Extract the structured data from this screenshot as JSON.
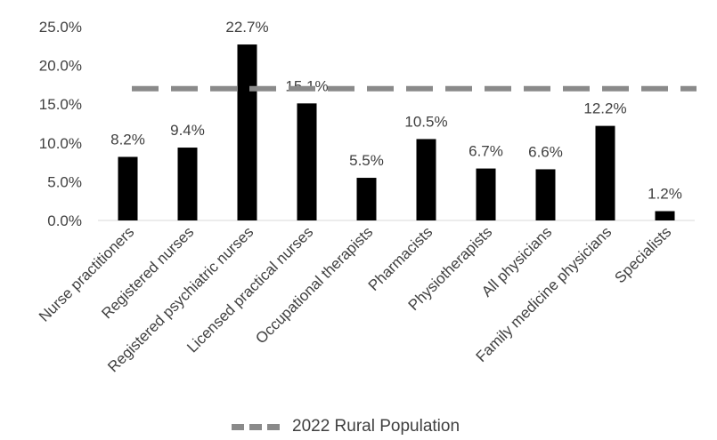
{
  "chart_data": {
    "type": "bar",
    "categories": [
      "Nurse practitioners",
      "Registered nurses",
      "Registered psychiatric nurses",
      "Licensed practical nurses",
      "Occupational therapists",
      "Pharmacists",
      "Physiotherapists",
      "All physicians",
      "Family medicine physicians",
      "Specialists"
    ],
    "values": [
      8.2,
      9.4,
      22.7,
      15.1,
      5.5,
      10.5,
      6.7,
      6.6,
      12.2,
      1.2
    ],
    "value_labels": [
      "8.2%",
      "9.4%",
      "22.7%",
      "15.1%",
      "5.5%",
      "10.5%",
      "6.7%",
      "6.6%",
      "12.2%",
      "1.2%"
    ],
    "y_ticks": [
      "0.0%",
      "5.0%",
      "10.0%",
      "15.0%",
      "20.0%",
      "25.0%"
    ],
    "ylim": [
      0,
      25
    ],
    "reference_line": {
      "name": "2022 Rural Population",
      "value": 17.0
    },
    "bar_color": "#000000",
    "reference_color": "#8a8a8a",
    "grid": false,
    "legend_position": "bottom"
  }
}
